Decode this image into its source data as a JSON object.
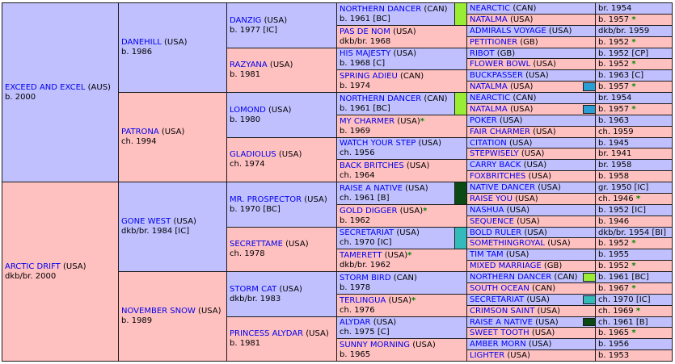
{
  "colors": {
    "male": "#c0c0ff",
    "female": "#ffc0c0",
    "name_link": "#0000ee",
    "star": "#008800"
  },
  "g1": [
    {
      "name": "EXCEED AND EXCEL",
      "ctry": "(AUS)",
      "info": "b. 2000",
      "sex": "m"
    },
    {
      "name": "ARCTIC DRIFT",
      "ctry": "(USA)",
      "info": "dkb/br. 2000",
      "sex": "f"
    }
  ],
  "g2": [
    {
      "name": "DANEHILL",
      "ctry": "(USA)",
      "info": "b. 1986",
      "sex": "m"
    },
    {
      "name": "PATRONA",
      "ctry": "(USA)",
      "info": "ch. 1994",
      "sex": "f"
    },
    {
      "name": "GONE WEST",
      "ctry": "(USA)",
      "info": "dkb/br. 1984 [IC]",
      "sex": "m"
    },
    {
      "name": "NOVEMBER SNOW",
      "ctry": "(USA)",
      "info": "b. 1989",
      "sex": "f"
    }
  ],
  "g3": [
    {
      "name": "DANZIG",
      "ctry": "(USA)",
      "info": "b. 1977 [IC]",
      "sex": "m"
    },
    {
      "name": "RAZYANA",
      "ctry": "(USA)",
      "info": "b. 1981",
      "sex": "f"
    },
    {
      "name": "LOMOND",
      "ctry": "(USA)",
      "info": "b. 1980",
      "sex": "m"
    },
    {
      "name": "GLADIOLUS",
      "ctry": "(USA)",
      "info": "ch. 1974",
      "sex": "f"
    },
    {
      "name": "MR. PROSPECTOR",
      "ctry": "(USA)",
      "info": "b. 1970 [BC]",
      "sex": "m"
    },
    {
      "name": "SECRETTAME",
      "ctry": "(USA)",
      "info": "ch. 1978",
      "sex": "f"
    },
    {
      "name": "STORM CAT",
      "ctry": "(USA)",
      "info": "dkb/br. 1983",
      "sex": "m"
    },
    {
      "name": "PRINCESS ALYDAR",
      "ctry": "(USA)",
      "info": "b. 1981",
      "sex": "f"
    }
  ],
  "g4": [
    {
      "name": "NORTHERN DANCER",
      "ctry": "(CAN)",
      "info": "b. 1961 [BC]",
      "sex": "m",
      "star": false,
      "bar": "#99ee33"
    },
    {
      "name": "PAS DE NOM",
      "ctry": "(USA)",
      "info": "dkb/br. 1968",
      "sex": "f",
      "star": false,
      "bar": ""
    },
    {
      "name": "HIS MAJESTY",
      "ctry": "(USA)",
      "info": "b. 1968 [C]",
      "sex": "m",
      "star": false,
      "bar": ""
    },
    {
      "name": "SPRING ADIEU",
      "ctry": "(CAN)",
      "info": "b. 1974",
      "sex": "f",
      "star": false,
      "bar": ""
    },
    {
      "name": "NORTHERN DANCER",
      "ctry": "(CAN)",
      "info": "b. 1961 [BC]",
      "sex": "m",
      "star": false,
      "bar": "#99ee33"
    },
    {
      "name": "MY CHARMER",
      "ctry": "(USA)",
      "info": "b. 1969",
      "sex": "f",
      "star": true,
      "bar": ""
    },
    {
      "name": "WATCH YOUR STEP",
      "ctry": "(USA)",
      "info": "ch. 1956",
      "sex": "m",
      "star": false,
      "bar": ""
    },
    {
      "name": "BACK BRITCHES",
      "ctry": "(USA)",
      "info": "ch. 1964",
      "sex": "f",
      "star": false,
      "bar": ""
    },
    {
      "name": "RAISE A NATIVE",
      "ctry": "(USA)",
      "info": "ch. 1961 [B]",
      "sex": "m",
      "star": false,
      "bar": "#0b4a12"
    },
    {
      "name": "GOLD DIGGER",
      "ctry": "(USA)",
      "info": "b. 1962",
      "sex": "f",
      "star": true,
      "bar": ""
    },
    {
      "name": "SECRETARIAT",
      "ctry": "(USA)",
      "info": "ch. 1970 [IC]",
      "sex": "m",
      "star": false,
      "bar": "#33bbbb"
    },
    {
      "name": "TAMERETT",
      "ctry": "(USA)",
      "info": "dkb/br. 1962",
      "sex": "f",
      "star": true,
      "bar": ""
    },
    {
      "name": "STORM BIRD",
      "ctry": "(CAN)",
      "info": "b. 1978",
      "sex": "m",
      "star": false,
      "bar": ""
    },
    {
      "name": "TERLINGUA",
      "ctry": "(USA)",
      "info": "ch. 1976",
      "sex": "f",
      "star": true,
      "bar": ""
    },
    {
      "name": "ALYDAR",
      "ctry": "(USA)",
      "info": "ch. 1975 [C]",
      "sex": "m",
      "star": false,
      "bar": ""
    },
    {
      "name": "SUNNY MORNING",
      "ctry": "(USA)",
      "info": "b. 1965",
      "sex": "f",
      "star": false,
      "bar": ""
    }
  ],
  "g5": [
    {
      "name": "NEARCTIC",
      "ctry": "(CAN)",
      "info": "br. 1954",
      "sex": "m",
      "star": false,
      "bar": ""
    },
    {
      "name": "NATALMA",
      "ctry": "(USA)",
      "info": "b. 1957",
      "sex": "f",
      "star": true,
      "bar": ""
    },
    {
      "name": "ADMIRALS VOYAGE",
      "ctry": "(USA)",
      "info": "dkb/br. 1959",
      "sex": "m",
      "star": false,
      "bar": ""
    },
    {
      "name": "PETITIONER",
      "ctry": "(GB)",
      "info": "b. 1952",
      "sex": "f",
      "star": true,
      "bar": ""
    },
    {
      "name": "RIBOT",
      "ctry": "(GB)",
      "info": "b. 1952 [CP]",
      "sex": "m",
      "star": false,
      "bar": ""
    },
    {
      "name": "FLOWER BOWL",
      "ctry": "(USA)",
      "info": "b. 1952",
      "sex": "f",
      "star": true,
      "bar": ""
    },
    {
      "name": "BUCKPASSER",
      "ctry": "(USA)",
      "info": "b. 1963 [C]",
      "sex": "m",
      "star": false,
      "bar": ""
    },
    {
      "name": "NATALMA",
      "ctry": "(USA)",
      "info": "b. 1957",
      "sex": "f",
      "star": true,
      "bar": "#2a9fd6"
    },
    {
      "name": "NEARCTIC",
      "ctry": "(CAN)",
      "info": "br. 1954",
      "sex": "m",
      "star": false,
      "bar": ""
    },
    {
      "name": "NATALMA",
      "ctry": "(USA)",
      "info": "b. 1957",
      "sex": "f",
      "star": true,
      "bar": "#2a9fd6"
    },
    {
      "name": "POKER",
      "ctry": "(USA)",
      "info": "b. 1963",
      "sex": "m",
      "star": false,
      "bar": ""
    },
    {
      "name": "FAIR CHARMER",
      "ctry": "(USA)",
      "info": "ch. 1959",
      "sex": "f",
      "star": false,
      "bar": ""
    },
    {
      "name": "CITATION",
      "ctry": "(USA)",
      "info": "b. 1945",
      "sex": "m",
      "star": false,
      "bar": ""
    },
    {
      "name": "STEPWISELY",
      "ctry": "(USA)",
      "info": "br. 1941",
      "sex": "f",
      "star": false,
      "bar": ""
    },
    {
      "name": "CARRY BACK",
      "ctry": "(USA)",
      "info": "br. 1958",
      "sex": "m",
      "star": false,
      "bar": ""
    },
    {
      "name": "FOXBRITCHES",
      "ctry": "(USA)",
      "info": "b. 1958",
      "sex": "f",
      "star": false,
      "bar": ""
    },
    {
      "name": "NATIVE DANCER",
      "ctry": "(USA)",
      "info": "gr. 1950 [IC]",
      "sex": "m",
      "star": false,
      "bar": ""
    },
    {
      "name": "RAISE YOU",
      "ctry": "(USA)",
      "info": "ch. 1946",
      "sex": "f",
      "star": true,
      "bar": ""
    },
    {
      "name": "NASHUA",
      "ctry": "(USA)",
      "info": "b. 1952 [IC]",
      "sex": "m",
      "star": false,
      "bar": ""
    },
    {
      "name": "SEQUENCE",
      "ctry": "(USA)",
      "info": "b. 1946",
      "sex": "f",
      "star": false,
      "bar": ""
    },
    {
      "name": "BOLD RULER",
      "ctry": "(USA)",
      "info": "dkb/br. 1954 [BI]",
      "sex": "m",
      "star": false,
      "bar": ""
    },
    {
      "name": "SOMETHINGROYAL",
      "ctry": "(USA)",
      "info": "b. 1952",
      "sex": "f",
      "star": true,
      "bar": ""
    },
    {
      "name": "TIM TAM",
      "ctry": "(USA)",
      "info": "b. 1955",
      "sex": "m",
      "star": false,
      "bar": ""
    },
    {
      "name": "MIXED MARRIAGE",
      "ctry": "(GB)",
      "info": "b. 1952",
      "sex": "f",
      "star": true,
      "bar": ""
    },
    {
      "name": "NORTHERN DANCER",
      "ctry": "(CAN)",
      "info": "b. 1961 [BC]",
      "sex": "m",
      "star": false,
      "bar": "#99ee33"
    },
    {
      "name": "SOUTH OCEAN",
      "ctry": "(CAN)",
      "info": "b. 1967",
      "sex": "f",
      "star": true,
      "bar": ""
    },
    {
      "name": "SECRETARIAT",
      "ctry": "(USA)",
      "info": "ch. 1970 [IC]",
      "sex": "m",
      "star": false,
      "bar": "#33bbbb"
    },
    {
      "name": "CRIMSON SAINT",
      "ctry": "(USA)",
      "info": "ch. 1969",
      "sex": "f",
      "star": true,
      "bar": ""
    },
    {
      "name": "RAISE A NATIVE",
      "ctry": "(USA)",
      "info": "ch. 1961 [B]",
      "sex": "m",
      "star": false,
      "bar": "#0b4a12"
    },
    {
      "name": "SWEET TOOTH",
      "ctry": "(USA)",
      "info": "b. 1965",
      "sex": "f",
      "star": true,
      "bar": ""
    },
    {
      "name": "AMBER MORN",
      "ctry": "(USA)",
      "info": "b. 1956",
      "sex": "m",
      "star": false,
      "bar": ""
    },
    {
      "name": "LIGHTER",
      "ctry": "(USA)",
      "info": "b. 1953",
      "sex": "f",
      "star": false,
      "bar": ""
    }
  ]
}
